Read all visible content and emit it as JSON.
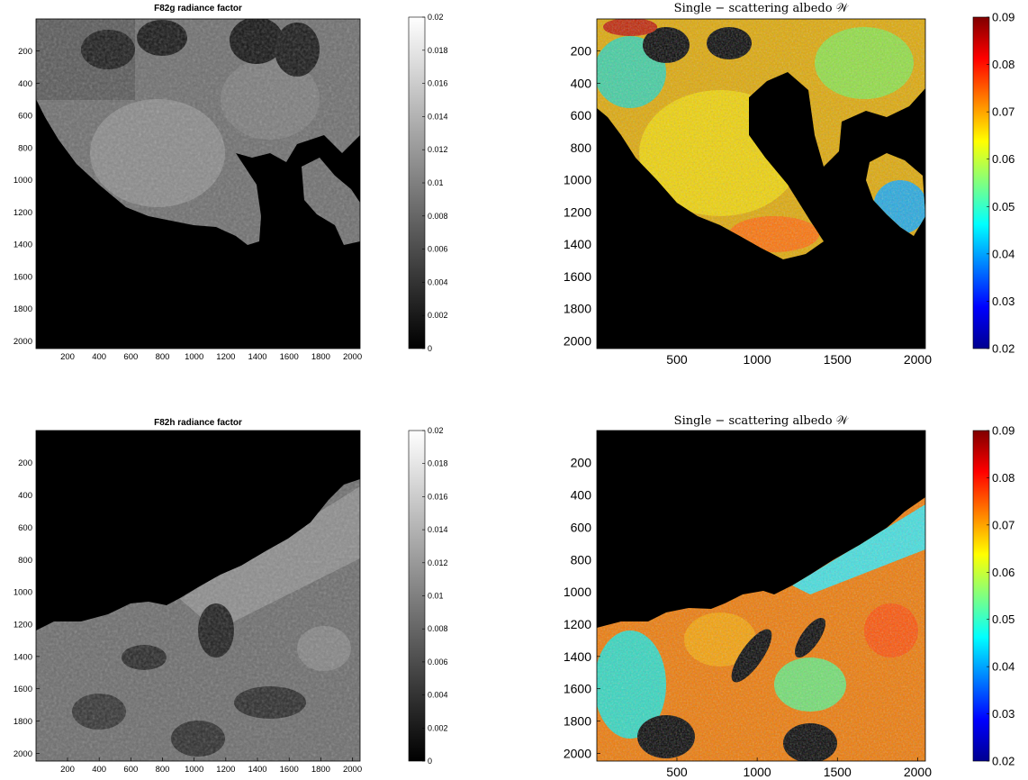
{
  "chart_data": [
    {
      "type": "heatmap",
      "title": "F82g radiance factor",
      "xticks": [
        200,
        400,
        600,
        800,
        1000,
        1200,
        1400,
        1600,
        1800,
        2000
      ],
      "yticks": [
        200,
        400,
        600,
        800,
        1000,
        1200,
        1400,
        1600,
        1800,
        2000
      ],
      "xlim": [
        1,
        2048
      ],
      "ylim": [
        1,
        2048
      ],
      "y_reversed": true,
      "colormap": "gray",
      "colorbar": {
        "range": [
          0,
          0.02
        ],
        "ticks": [
          "0",
          "0.002",
          "0.004",
          "0.006",
          "0.008",
          "0.01",
          "0.012",
          "0.014",
          "0.016",
          "0.018",
          "0.02"
        ]
      }
    },
    {
      "type": "heatmap",
      "title": "Single − scattering albedo 𝒲",
      "xticks": [
        500,
        1000,
        1500,
        2000
      ],
      "yticks": [
        200,
        400,
        600,
        800,
        1000,
        1200,
        1400,
        1600,
        1800,
        2000
      ],
      "xlim": [
        1,
        2048
      ],
      "ylim": [
        1,
        2048
      ],
      "y_reversed": true,
      "colormap": "jet",
      "colorbar": {
        "range": [
          0.02,
          0.09
        ],
        "ticks": [
          "0.02",
          "0.03",
          "0.04",
          "0.05",
          "0.06",
          "0.07",
          "0.08",
          "0.09"
        ]
      }
    },
    {
      "type": "heatmap",
      "title": "F82h radiance factor",
      "xticks": [
        200,
        400,
        600,
        800,
        1000,
        1200,
        1400,
        1600,
        1800,
        2000
      ],
      "yticks": [
        200,
        400,
        600,
        800,
        1000,
        1200,
        1400,
        1600,
        1800,
        2000
      ],
      "xlim": [
        1,
        2048
      ],
      "ylim": [
        1,
        2048
      ],
      "y_reversed": true,
      "colormap": "gray",
      "colorbar": {
        "range": [
          0,
          0.02
        ],
        "ticks": [
          "0",
          "0.002",
          "0.004",
          "0.006",
          "0.008",
          "0.01",
          "0.012",
          "0.014",
          "0.016",
          "0.018",
          "0.02"
        ]
      }
    },
    {
      "type": "heatmap",
      "title": "Single − scattering albedo 𝒲",
      "xticks": [
        500,
        1000,
        1500,
        2000
      ],
      "yticks": [
        200,
        400,
        600,
        800,
        1000,
        1200,
        1400,
        1600,
        1800,
        2000
      ],
      "xlim": [
        1,
        2048
      ],
      "ylim": [
        1,
        2048
      ],
      "y_reversed": true,
      "colormap": "jet",
      "colorbar": {
        "range": [
          0.02,
          0.09
        ],
        "ticks": [
          "0.02",
          "0.03",
          "0.04",
          "0.05",
          "0.06",
          "0.07",
          "0.08",
          "0.09"
        ]
      }
    }
  ]
}
